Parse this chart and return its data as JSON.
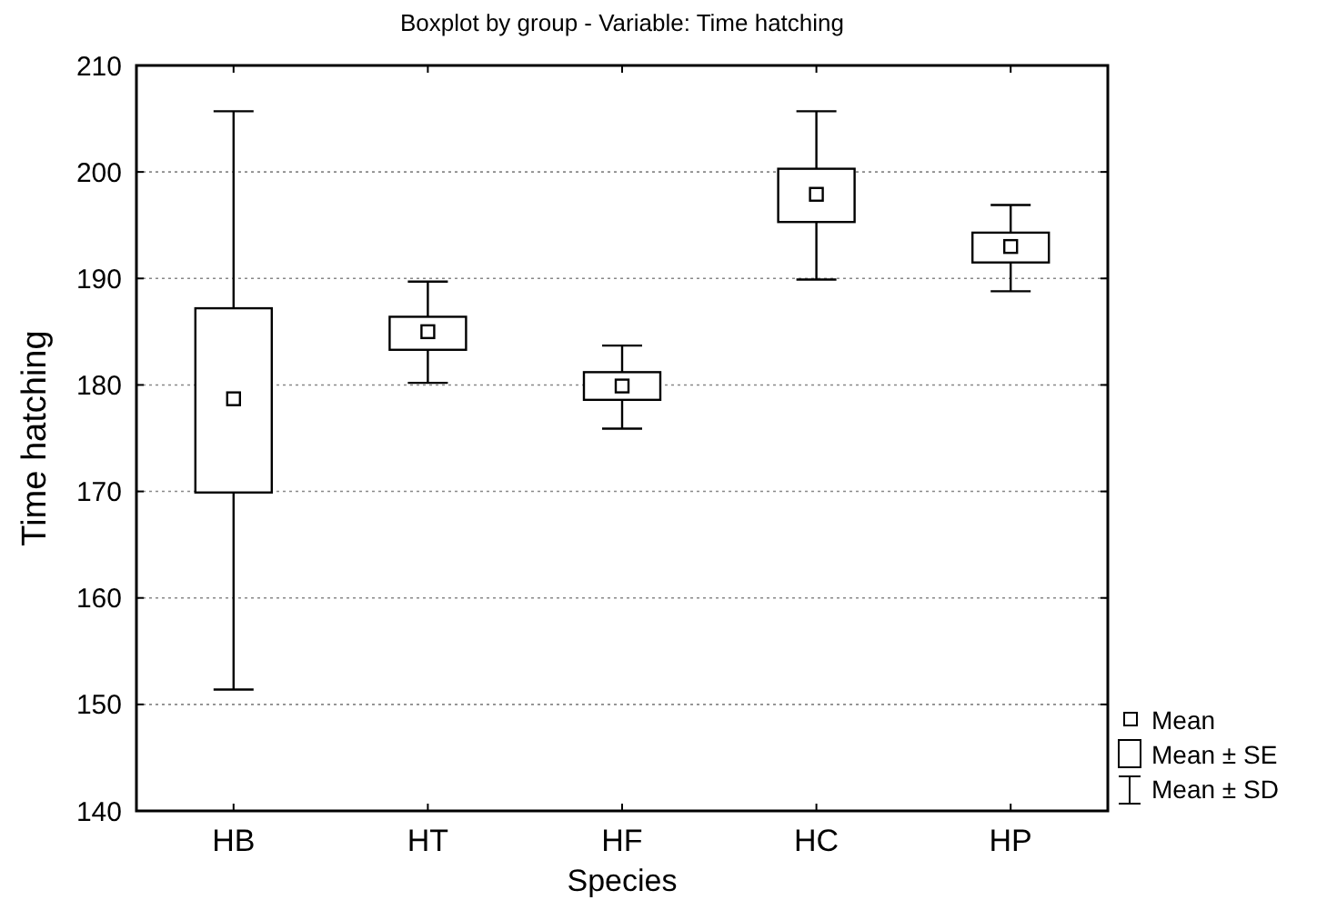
{
  "chart_data": {
    "type": "box",
    "title": "Boxplot by group  -  Variable: Time hatching",
    "xlabel": "Species",
    "ylabel": "Time hatching",
    "categories": [
      "HB",
      "HT",
      "HF",
      "HC",
      "HP"
    ],
    "boxes": [
      {
        "low": 151.4,
        "q1": 169.9,
        "q3": 187.2,
        "high": 205.7,
        "mean": 178.7
      },
      {
        "low": 180.2,
        "q1": 183.3,
        "q3": 186.4,
        "high": 189.7,
        "mean": 185.0
      },
      {
        "low": 175.9,
        "q1": 178.6,
        "q3": 181.2,
        "high": 183.7,
        "mean": 179.9
      },
      {
        "low": 189.9,
        "q1": 195.3,
        "q3": 200.3,
        "high": 205.7,
        "mean": 197.9
      },
      {
        "low": 188.8,
        "q1": 191.5,
        "q3": 194.3,
        "high": 196.9,
        "mean": 193.0
      }
    ],
    "ylim": [
      140,
      210
    ],
    "yticks": [
      140,
      150,
      160,
      170,
      180,
      190,
      200,
      210
    ],
    "grid": "y",
    "annotations": [
      "Mean",
      "Mean ± SE",
      "Mean ± SD"
    ]
  }
}
